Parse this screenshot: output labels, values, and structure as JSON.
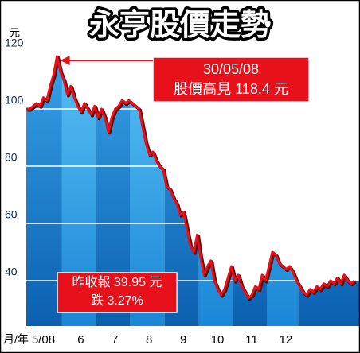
{
  "chart_data": {
    "type": "line",
    "title": "永亨股價走勢",
    "y_unit": "元",
    "x_axis_label": "月/年",
    "categories": [
      null,
      null,
      null,
      null,
      null,
      "5/08",
      null,
      null,
      null,
      null,
      null,
      null,
      null,
      null,
      null,
      "6",
      null,
      null,
      null,
      null,
      null,
      null,
      null,
      null,
      null,
      "7",
      null,
      null,
      null,
      null,
      null,
      null,
      null,
      null,
      null,
      "8",
      null,
      null,
      null,
      null,
      null,
      null,
      null,
      null,
      null,
      "9",
      null,
      null,
      null,
      null,
      null,
      null,
      null,
      null,
      null,
      "10",
      null,
      null,
      null,
      null,
      null,
      null,
      null,
      null,
      null,
      "11",
      null,
      null,
      null,
      null,
      null,
      null,
      null,
      null,
      null,
      "12",
      null,
      null,
      null,
      null,
      null,
      null,
      null,
      null,
      null,
      null,
      null,
      null,
      null,
      null,
      null,
      null,
      null,
      null,
      null,
      null,
      null
    ],
    "series": [
      {
        "color": "#e8101a",
        "values": [
          100,
          100,
          101,
          102,
          101,
          104,
          103,
          108,
          112,
          118.4,
          113,
          110,
          105,
          108,
          104,
          101,
          99,
          102,
          100,
          98,
          101,
          97,
          100,
          97,
          92,
          97,
          100,
          101,
          103,
          102,
          103,
          102,
          101,
          100,
          94,
          88,
          84,
          85,
          82,
          80,
          79,
          73,
          72,
          69,
          67,
          63,
          64,
          58,
          52,
          50,
          56,
          48,
          42,
          45,
          47,
          40,
          37,
          35,
          37,
          41,
          45,
          40,
          42,
          38,
          36,
          34,
          35,
          38,
          37,
          42,
          40,
          45,
          50,
          49,
          46,
          45,
          44,
          45,
          43,
          40,
          38,
          36,
          35,
          37,
          36,
          38,
          37,
          39,
          38,
          40,
          39,
          41,
          39,
          42,
          40,
          39,
          39.95
        ]
      }
    ],
    "ylim": [
      25,
      125
    ],
    "yticks": [
      40,
      60,
      80,
      100,
      120
    ],
    "grid": true,
    "annotations": [
      {
        "lines": [
          "30/05/08",
          "股價高見 118.4 元"
        ]
      },
      {
        "lines": [
          "昨收報 39.95 元",
          "跌 3.27%"
        ]
      }
    ]
  }
}
